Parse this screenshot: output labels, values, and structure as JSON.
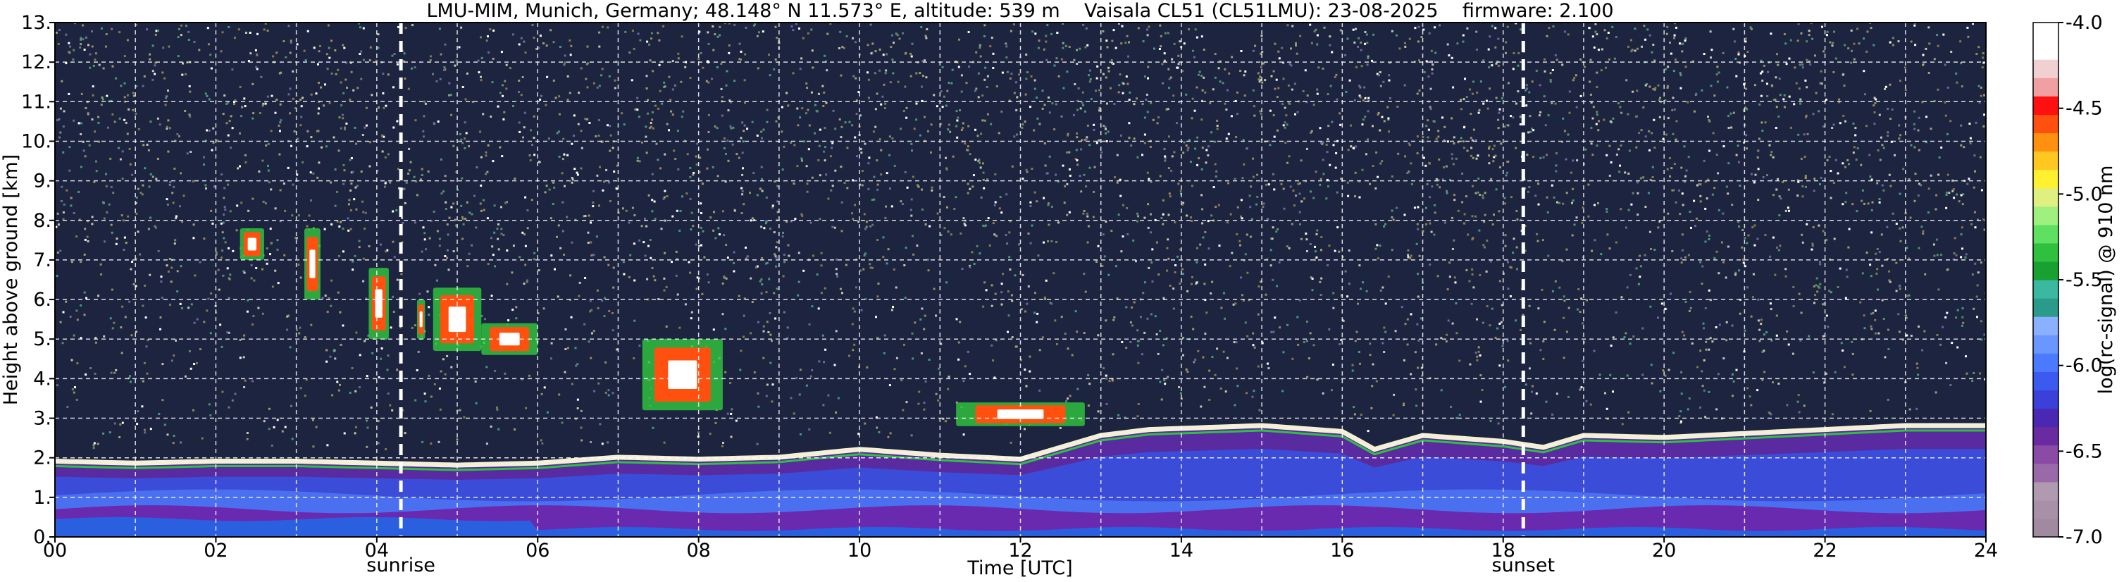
{
  "chart_data": {
    "type": "heatmap",
    "title": "LMU-MIM, Munich, Germany; 48.148° N 11.573° E, altitude: 539 m    Vaisala CL51 (CL51LMU): 23-08-2025    firmware: 2.100",
    "xlabel": "Time [UTC]",
    "ylabel": "Height above ground [km]",
    "xlim": [
      0,
      24
    ],
    "ylim": [
      0,
      13
    ],
    "x_ticks": [
      "00",
      "02",
      "04",
      "06",
      "08",
      "10",
      "12",
      "14",
      "16",
      "18",
      "20",
      "22",
      "24"
    ],
    "y_ticks": [
      "0.",
      "1.",
      "2.",
      "3.",
      "4.",
      "5.",
      "6.",
      "7.",
      "8.",
      "9.",
      "10.",
      "11.",
      "12.",
      "13."
    ],
    "grid": true,
    "markers": [
      {
        "label": "sunrise",
        "x": 4.3
      },
      {
        "label": "sunset",
        "x": 18.25
      }
    ],
    "colorbar": {
      "label": "log(rc-signal) @ 910 nm",
      "range": [
        -7.0,
        -4.0
      ],
      "ticks": [
        "-4.0",
        "-4.5",
        "-5.0",
        "-5.5",
        "-6.0",
        "-6.5",
        "-7.0"
      ],
      "colors": [
        "#a08aa0",
        "#a890a8",
        "#b09ab0",
        "#9a6aa8",
        "#8a4aa6",
        "#6a2aa0",
        "#4a28b4",
        "#3a40d8",
        "#3a5af0",
        "#4a7aff",
        "#6a96ff",
        "#8ab0ff",
        "#2a9a8a",
        "#3ab8a0",
        "#18a030",
        "#30c040",
        "#60e060",
        "#a0f080",
        "#e0f080",
        "#fff030",
        "#ffc820",
        "#ff9010",
        "#ff5010",
        "#ff1010",
        "#f0a0a0",
        "#f0d0d0",
        "#ffffff",
        "#ffffff"
      ]
    },
    "features": {
      "boundary_layer_top_km": [
        [
          0,
          1.95
        ],
        [
          1,
          1.9
        ],
        [
          2,
          1.95
        ],
        [
          3,
          1.95
        ],
        [
          4,
          1.9
        ],
        [
          5,
          1.85
        ],
        [
          6,
          1.9
        ],
        [
          7,
          2.05
        ],
        [
          8,
          2.0
        ],
        [
          9,
          2.05
        ],
        [
          10,
          2.25
        ],
        [
          11,
          2.1
        ],
        [
          12,
          2.0
        ],
        [
          13,
          2.6
        ],
        [
          13.6,
          2.75
        ],
        [
          15,
          2.85
        ],
        [
          16,
          2.7
        ],
        [
          16.4,
          2.25
        ],
        [
          17,
          2.6
        ],
        [
          18,
          2.45
        ],
        [
          18.5,
          2.3
        ],
        [
          19,
          2.6
        ],
        [
          20,
          2.55
        ],
        [
          21,
          2.65
        ],
        [
          22,
          2.75
        ],
        [
          23,
          2.85
        ],
        [
          24,
          2.85
        ]
      ],
      "cloud_patches": [
        {
          "t_start": 2.3,
          "t_end": 2.6,
          "z_bottom": 7.0,
          "z_top": 7.8
        },
        {
          "t_start": 3.1,
          "t_end": 3.3,
          "z_bottom": 6.0,
          "z_top": 7.8
        },
        {
          "t_start": 3.9,
          "t_end": 4.15,
          "z_bottom": 5.0,
          "z_top": 6.8
        },
        {
          "t_start": 4.5,
          "t_end": 4.6,
          "z_bottom": 5.0,
          "z_top": 6.0
        },
        {
          "t_start": 4.7,
          "t_end": 5.3,
          "z_bottom": 4.7,
          "z_top": 6.3
        },
        {
          "t_start": 5.3,
          "t_end": 6.0,
          "z_bottom": 4.6,
          "z_top": 5.4
        },
        {
          "t_start": 7.3,
          "t_end": 8.3,
          "z_bottom": 3.2,
          "z_top": 5.0
        },
        {
          "t_start": 11.2,
          "t_end": 12.8,
          "z_bottom": 2.8,
          "z_top": 3.4
        }
      ]
    }
  }
}
